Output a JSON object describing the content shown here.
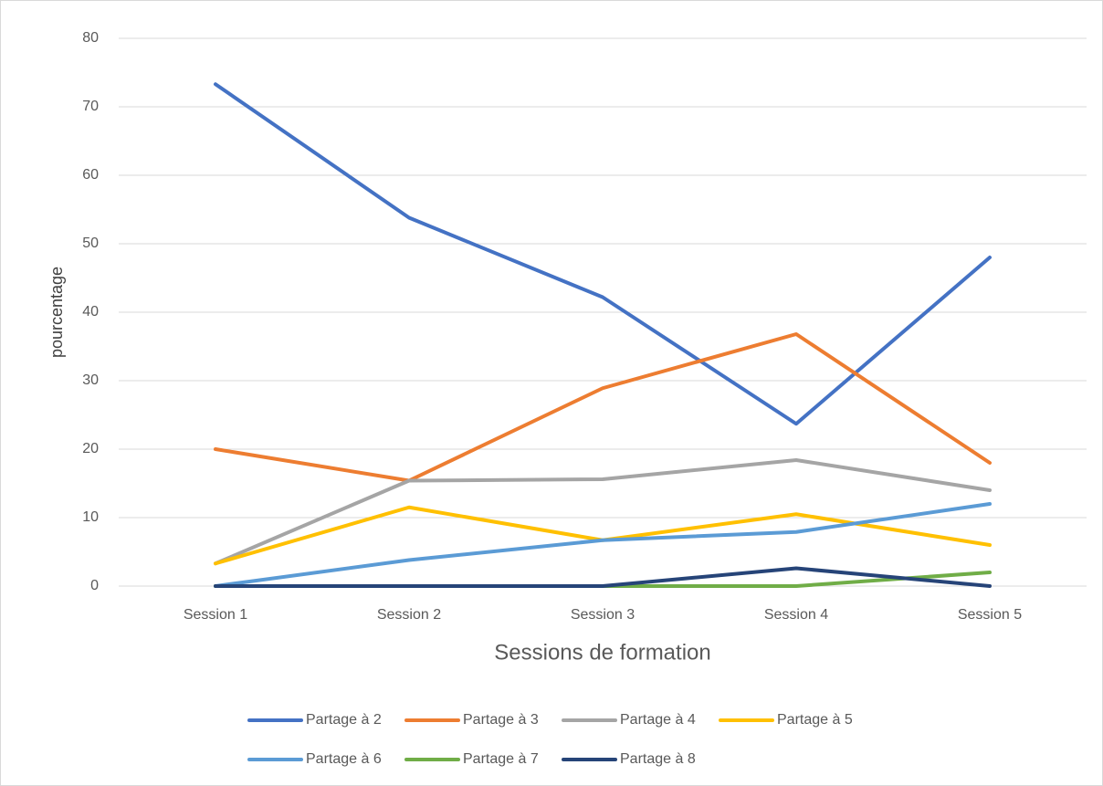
{
  "chart_data": {
    "type": "line",
    "x_label": "Sessions de formation",
    "y_label": "pourcentage",
    "categories": [
      "Session 1",
      "Session 2",
      "Session 3",
      "Session 4",
      "Session 5"
    ],
    "series": [
      {
        "name": "Partage à 2",
        "color": "#4472c4",
        "values": [
          73.3,
          53.8,
          42.2,
          23.7,
          48
        ]
      },
      {
        "name": "Partage à 3",
        "color": "#ed7d31",
        "values": [
          20,
          15.4,
          28.9,
          36.8,
          18
        ]
      },
      {
        "name": "Partage à 4",
        "color": "#a5a5a5",
        "values": [
          3.3,
          15.4,
          15.6,
          18.4,
          14
        ]
      },
      {
        "name": "Partage à 5",
        "color": "#ffc000",
        "values": [
          3.3,
          11.5,
          6.7,
          10.5,
          6
        ]
      },
      {
        "name": "Partage à 6",
        "color": "#5b9bd5",
        "values": [
          0,
          3.8,
          6.7,
          7.9,
          12
        ]
      },
      {
        "name": "Partage à 7",
        "color": "#70ad47",
        "values": [
          0,
          0,
          0,
          0,
          2
        ]
      },
      {
        "name": "Partage à 8",
        "color": "#264478",
        "values": [
          0,
          0,
          0,
          2.6,
          0
        ]
      }
    ],
    "ylim": [
      0,
      80
    ],
    "yticks": [
      0,
      10,
      20,
      30,
      40,
      50,
      60,
      70,
      80
    ],
    "grid": true,
    "legend": "bottom"
  }
}
